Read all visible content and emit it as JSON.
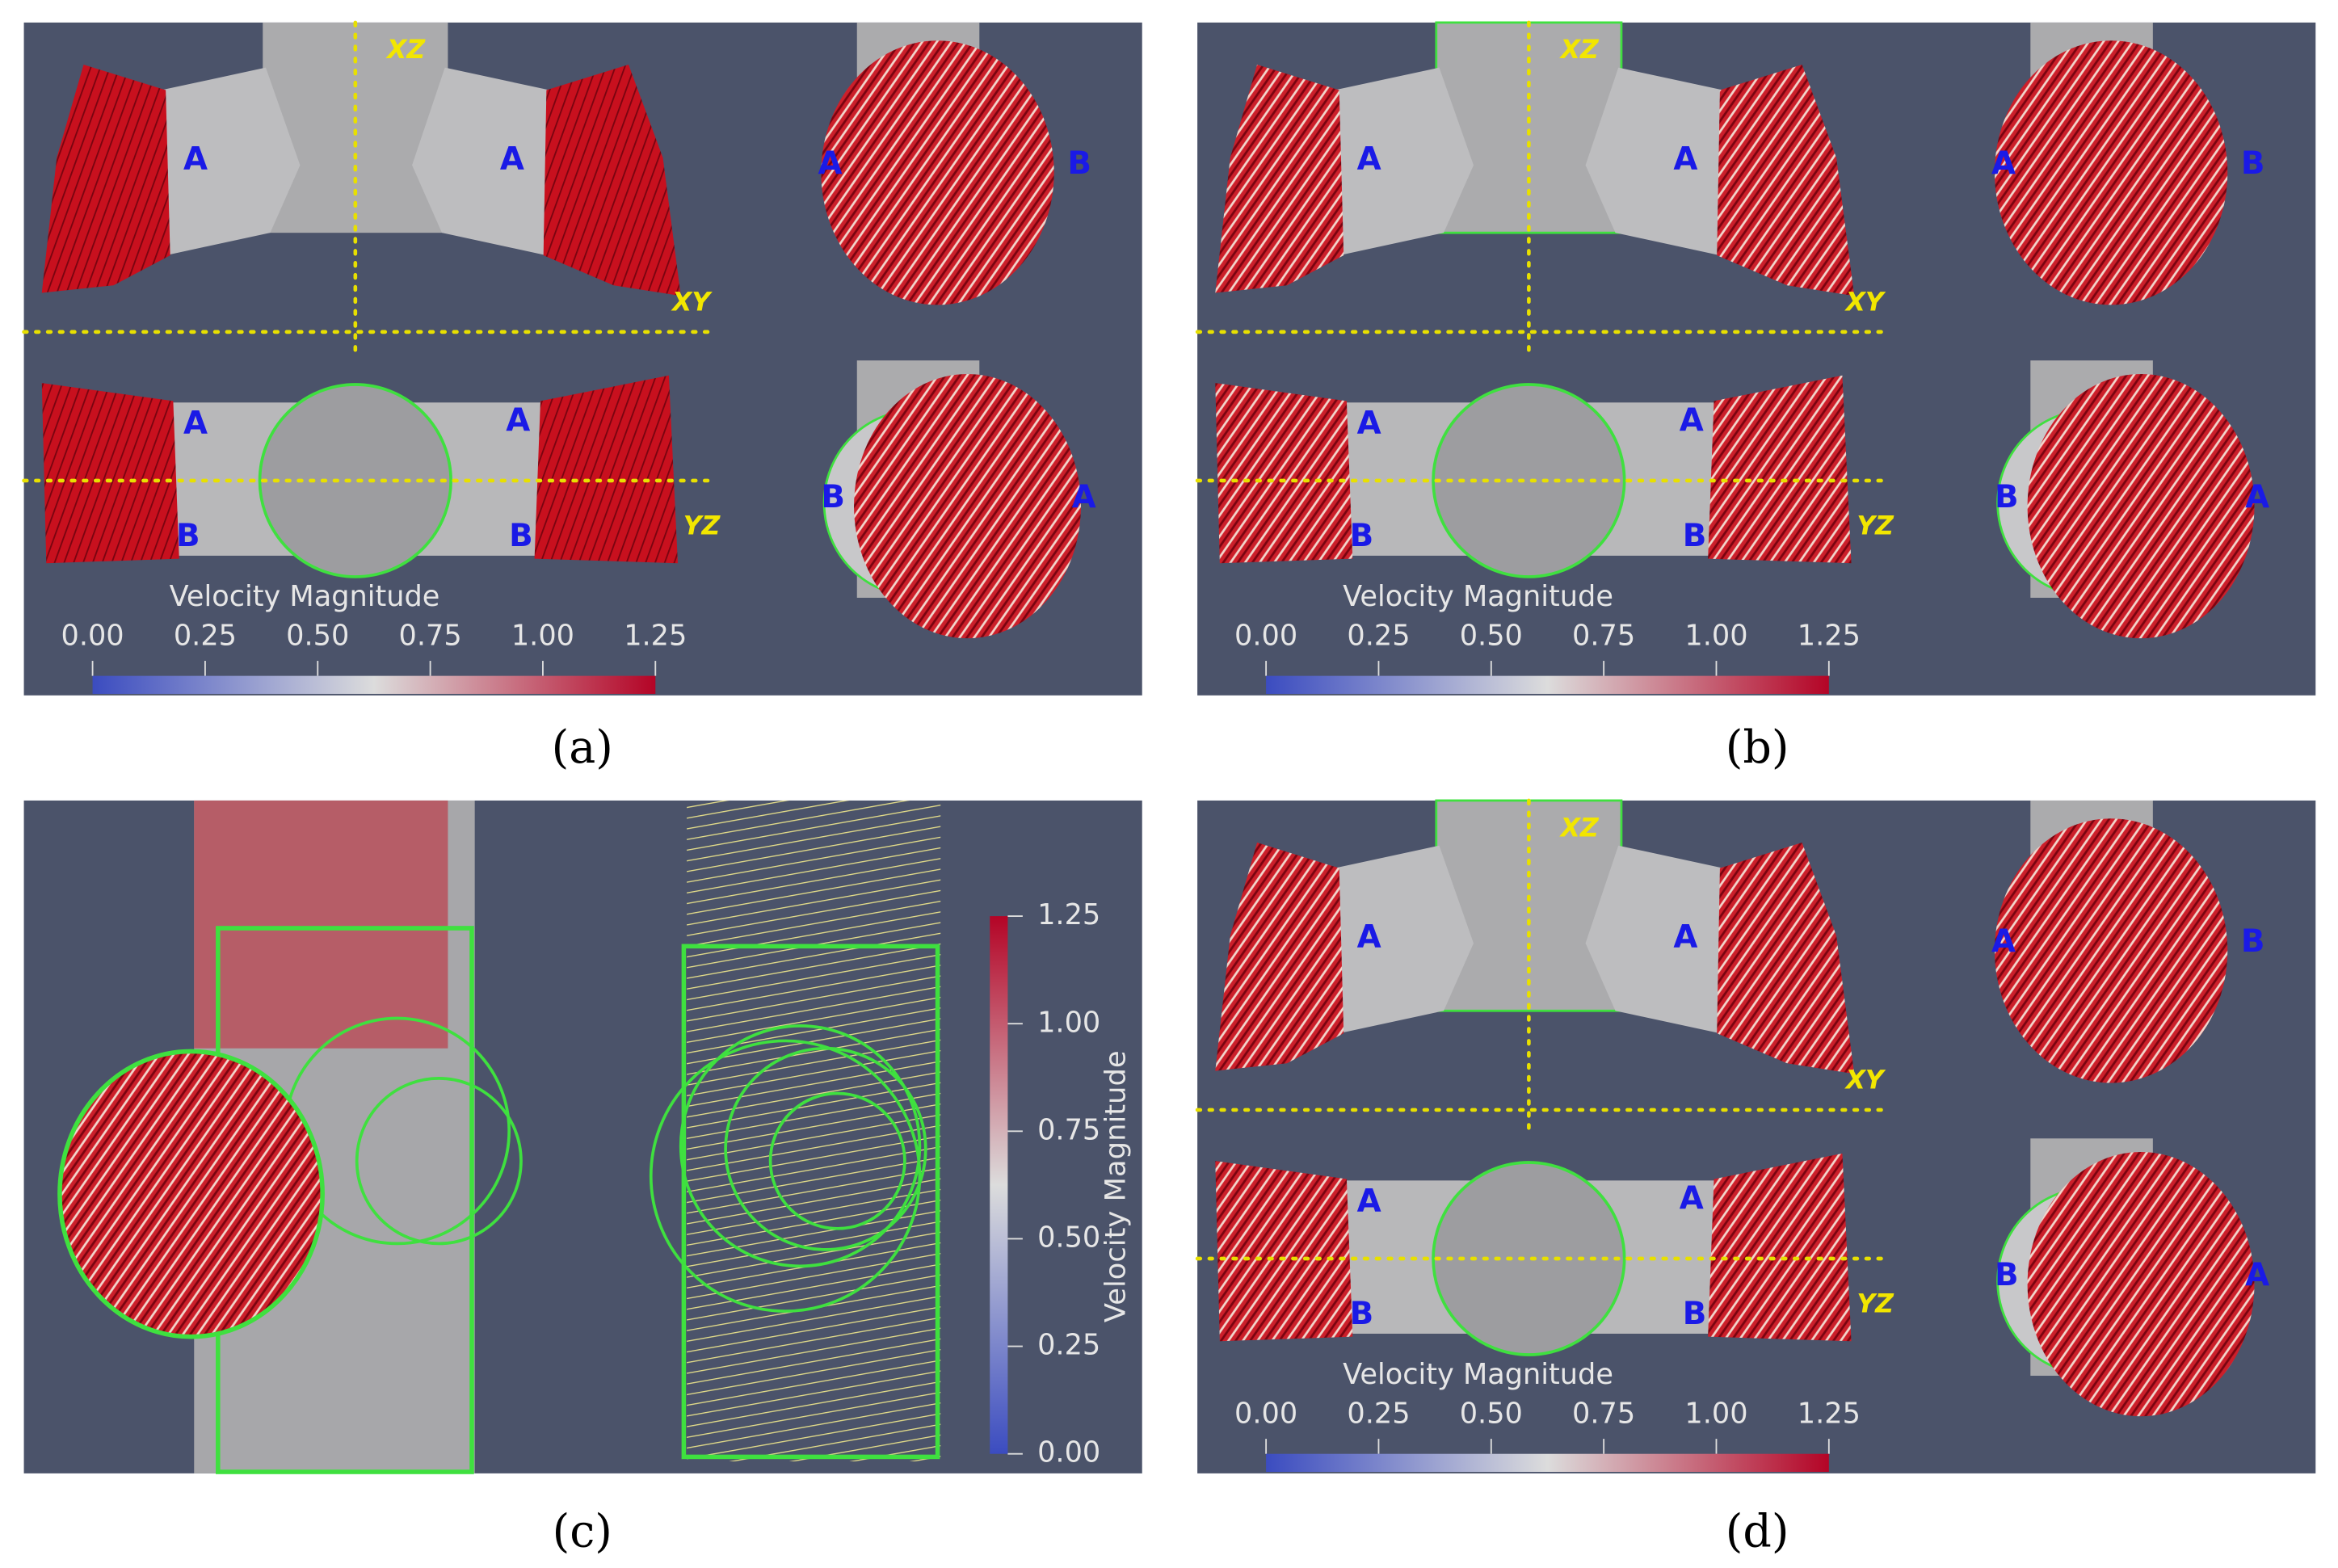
{
  "panels": [
    {
      "caption": "(a)",
      "view_labels": [
        "XZ",
        "XY",
        "YZ"
      ],
      "point_labels": [
        "A",
        "A",
        "A",
        "B",
        "A",
        "A",
        "B",
        "B",
        "B",
        "A"
      ],
      "colorbar": {
        "title": "Velocity Magnitude",
        "ticks": [
          "0.00",
          "0.25",
          "0.50",
          "0.75",
          "1.00",
          "1.25"
        ]
      }
    },
    {
      "caption": "(b)",
      "view_labels": [
        "XZ",
        "XY",
        "YZ"
      ],
      "point_labels": [
        "A",
        "A",
        "A",
        "B",
        "A",
        "A",
        "B",
        "B",
        "B",
        "A"
      ],
      "colorbar": {
        "title": "Velocity Magnitude",
        "ticks": [
          "0.00",
          "0.25",
          "0.50",
          "0.75",
          "1.00",
          "1.25"
        ]
      }
    },
    {
      "caption": "(c)",
      "colorbar": {
        "title": "Velocity Magnitude",
        "ticks": [
          "0.00",
          "0.25",
          "0.50",
          "0.75",
          "1.00",
          "1.25"
        ]
      }
    },
    {
      "caption": "(d)",
      "view_labels": [
        "XZ",
        "XY",
        "YZ"
      ],
      "point_labels": [
        "A",
        "A",
        "A",
        "B",
        "A",
        "A",
        "B",
        "B",
        "B",
        "A"
      ],
      "colorbar": {
        "title": "Velocity Magnitude",
        "ticks": [
          "0.00",
          "0.25",
          "0.50",
          "0.75",
          "1.00",
          "1.25"
        ]
      }
    }
  ]
}
